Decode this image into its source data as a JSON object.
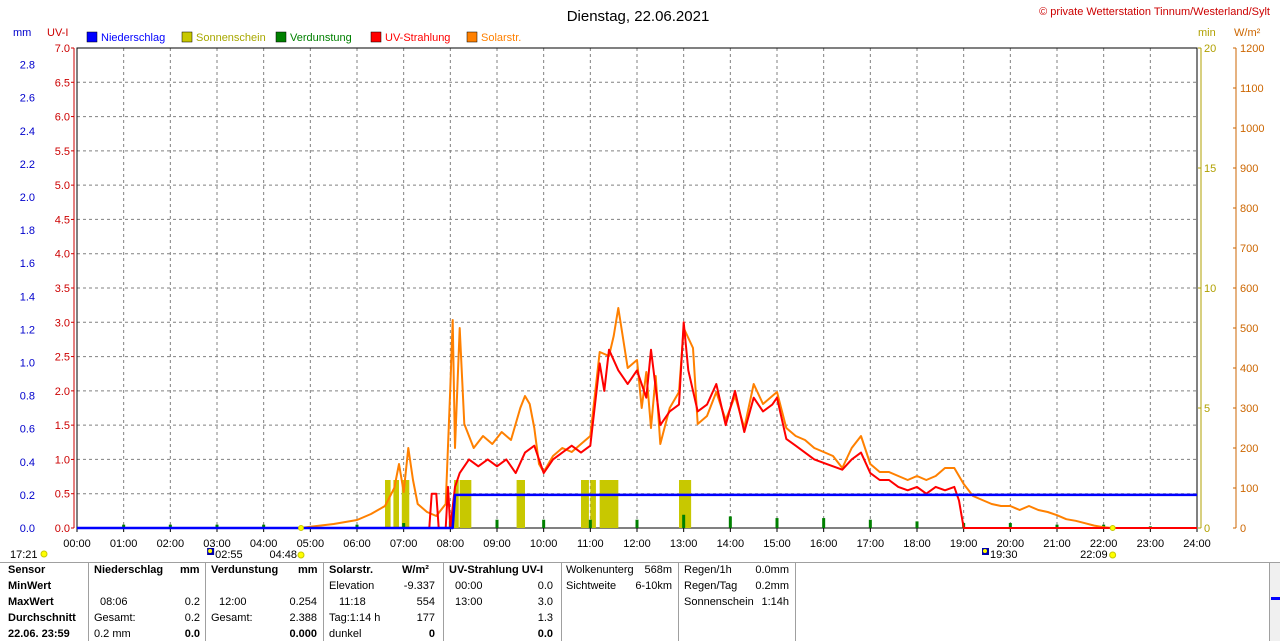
{
  "header": {
    "title": "Dienstag, 22.06.2021",
    "copyright": "© private Wetterstation Tinnum/Westerland/Sylt"
  },
  "axes": {
    "left_unit_mm": "mm",
    "left_unit_uv": "UV-I",
    "right_unit_min": "min",
    "right_unit_wm2": "W/m²",
    "mm_ticks": [
      "0.0",
      "0.2",
      "0.4",
      "0.6",
      "0.8",
      "1.0",
      "1.2",
      "1.4",
      "1.6",
      "1.8",
      "2.0",
      "2.2",
      "2.4",
      "2.6",
      "2.8"
    ],
    "uv_ticks": [
      "0.0",
      "0.5",
      "1.0",
      "1.5",
      "2.0",
      "2.5",
      "3.0",
      "3.5",
      "4.0",
      "4.5",
      "5.0",
      "5.5",
      "6.0",
      "6.5",
      "7.0"
    ],
    "min_ticks": [
      "0",
      "5",
      "10",
      "15",
      "20"
    ],
    "wm2_ticks": [
      "0",
      "100",
      "200",
      "300",
      "400",
      "500",
      "600",
      "700",
      "800",
      "900",
      "1000",
      "1100",
      "1200"
    ],
    "time_ticks": [
      "00:00",
      "01:00",
      "02:00",
      "03:00",
      "04:00",
      "05:00",
      "06:00",
      "07:00",
      "08:00",
      "09:00",
      "10:00",
      "11:00",
      "12:00",
      "13:00",
      "14:00",
      "15:00",
      "16:00",
      "17:00",
      "18:00",
      "19:00",
      "20:00",
      "21:00",
      "22:00",
      "23:00",
      "24:00"
    ]
  },
  "legend": [
    {
      "label": "Niederschlag",
      "color": "#0000ff"
    },
    {
      "label": "Sonnenschein",
      "color": "#c8c800"
    },
    {
      "label": "Verdunstung",
      "color": "#008000"
    },
    {
      "label": "UV-Strahlung",
      "color": "#ff0000"
    },
    {
      "label": "Solarstr.",
      "color": "#ff8000"
    }
  ],
  "markers": {
    "moonset": "17:21",
    "moonrise": "22:09",
    "sunrise": "02:55",
    "dawn": "04:48",
    "sunset": "19:30"
  },
  "chart_data": {
    "type": "line",
    "x_unit": "hours",
    "xlim": [
      0,
      24
    ],
    "ylim_mm": [
      0,
      2.9
    ],
    "ylim_uv": [
      0,
      7.0
    ],
    "ylim_min": [
      0,
      20
    ],
    "ylim_wm2": [
      0,
      1200
    ],
    "grid": true,
    "legend_position": "top-left",
    "series": [
      {
        "name": "Solarstr.",
        "axis": "W/m²",
        "color": "#ff8000",
        "points": [
          [
            0,
            0
          ],
          [
            4.8,
            0
          ],
          [
            5.0,
            3
          ],
          [
            5.5,
            10
          ],
          [
            6.0,
            20
          ],
          [
            6.3,
            35
          ],
          [
            6.6,
            55
          ],
          [
            6.8,
            100
          ],
          [
            6.9,
            160
          ],
          [
            7.0,
            90
          ],
          [
            7.1,
            200
          ],
          [
            7.2,
            120
          ],
          [
            7.3,
            60
          ],
          [
            7.5,
            40
          ],
          [
            7.7,
            30
          ],
          [
            7.9,
            60
          ],
          [
            8.0,
            350
          ],
          [
            8.05,
            520
          ],
          [
            8.1,
            200
          ],
          [
            8.2,
            500
          ],
          [
            8.3,
            260
          ],
          [
            8.5,
            200
          ],
          [
            8.7,
            230
          ],
          [
            8.9,
            210
          ],
          [
            9.1,
            240
          ],
          [
            9.3,
            220
          ],
          [
            9.5,
            300
          ],
          [
            9.6,
            330
          ],
          [
            9.7,
            310
          ],
          [
            9.8,
            250
          ],
          [
            9.9,
            160
          ],
          [
            10.0,
            140
          ],
          [
            10.2,
            180
          ],
          [
            10.4,
            200
          ],
          [
            10.6,
            190
          ],
          [
            10.8,
            210
          ],
          [
            11.0,
            230
          ],
          [
            11.2,
            440
          ],
          [
            11.4,
            430
          ],
          [
            11.5,
            480
          ],
          [
            11.6,
            550
          ],
          [
            11.8,
            400
          ],
          [
            12.0,
            420
          ],
          [
            12.1,
            300
          ],
          [
            12.2,
            390
          ],
          [
            12.3,
            250
          ],
          [
            12.4,
            380
          ],
          [
            12.5,
            210
          ],
          [
            12.7,
            300
          ],
          [
            12.9,
            340
          ],
          [
            13.0,
            500
          ],
          [
            13.2,
            450
          ],
          [
            13.3,
            260
          ],
          [
            13.5,
            280
          ],
          [
            13.7,
            340
          ],
          [
            13.9,
            270
          ],
          [
            14.1,
            330
          ],
          [
            14.3,
            250
          ],
          [
            14.5,
            360
          ],
          [
            14.7,
            310
          ],
          [
            14.9,
            330
          ],
          [
            15.0,
            340
          ],
          [
            15.2,
            250
          ],
          [
            15.4,
            230
          ],
          [
            15.6,
            220
          ],
          [
            15.8,
            200
          ],
          [
            16.0,
            190
          ],
          [
            16.2,
            180
          ],
          [
            16.4,
            150
          ],
          [
            16.6,
            200
          ],
          [
            16.8,
            230
          ],
          [
            17.0,
            160
          ],
          [
            17.2,
            140
          ],
          [
            17.4,
            140
          ],
          [
            17.6,
            130
          ],
          [
            17.8,
            120
          ],
          [
            18.0,
            130
          ],
          [
            18.2,
            120
          ],
          [
            18.4,
            130
          ],
          [
            18.6,
            150
          ],
          [
            18.8,
            150
          ],
          [
            19.0,
            110
          ],
          [
            19.2,
            80
          ],
          [
            19.4,
            70
          ],
          [
            19.6,
            60
          ],
          [
            19.8,
            55
          ],
          [
            20.0,
            55
          ],
          [
            20.2,
            45
          ],
          [
            20.4,
            55
          ],
          [
            20.6,
            45
          ],
          [
            20.8,
            40
          ],
          [
            21.0,
            32
          ],
          [
            21.2,
            22
          ],
          [
            21.4,
            18
          ],
          [
            21.6,
            12
          ],
          [
            21.8,
            6
          ],
          [
            22.0,
            2
          ],
          [
            22.2,
            0
          ],
          [
            24,
            0
          ]
        ]
      },
      {
        "name": "UV-Strahlung",
        "axis": "UV-I",
        "color": "#ff0000",
        "points": [
          [
            0,
            0
          ],
          [
            7.55,
            0
          ],
          [
            7.6,
            0.5
          ],
          [
            7.7,
            0.5
          ],
          [
            7.75,
            0
          ],
          [
            7.9,
            0
          ],
          [
            7.95,
            0.6
          ],
          [
            8.0,
            0
          ],
          [
            8.1,
            0.6
          ],
          [
            8.2,
            0.8
          ],
          [
            8.4,
            1.0
          ],
          [
            8.6,
            0.9
          ],
          [
            8.8,
            1.0
          ],
          [
            9.0,
            0.9
          ],
          [
            9.2,
            1.0
          ],
          [
            9.4,
            0.8
          ],
          [
            9.6,
            1.1
          ],
          [
            9.8,
            1.2
          ],
          [
            10.0,
            0.8
          ],
          [
            10.2,
            1.0
          ],
          [
            10.4,
            1.1
          ],
          [
            10.6,
            1.2
          ],
          [
            10.8,
            1.1
          ],
          [
            11.0,
            1.2
          ],
          [
            11.2,
            2.4
          ],
          [
            11.3,
            2.0
          ],
          [
            11.4,
            2.6
          ],
          [
            11.6,
            2.3
          ],
          [
            11.8,
            2.1
          ],
          [
            12.0,
            2.3
          ],
          [
            12.2,
            1.9
          ],
          [
            12.3,
            2.6
          ],
          [
            12.5,
            1.5
          ],
          [
            12.7,
            1.7
          ],
          [
            12.9,
            1.8
          ],
          [
            13.0,
            3.0
          ],
          [
            13.1,
            2.3
          ],
          [
            13.3,
            1.7
          ],
          [
            13.5,
            1.8
          ],
          [
            13.7,
            2.1
          ],
          [
            13.9,
            1.5
          ],
          [
            14.1,
            2.0
          ],
          [
            14.3,
            1.4
          ],
          [
            14.5,
            1.9
          ],
          [
            14.7,
            1.7
          ],
          [
            14.9,
            1.8
          ],
          [
            15.0,
            1.9
          ],
          [
            15.2,
            1.3
          ],
          [
            15.4,
            1.2
          ],
          [
            15.6,
            1.1
          ],
          [
            15.8,
            1.0
          ],
          [
            16.0,
            0.95
          ],
          [
            16.2,
            0.9
          ],
          [
            16.4,
            0.85
          ],
          [
            16.6,
            1.0
          ],
          [
            16.8,
            1.1
          ],
          [
            17.0,
            0.8
          ],
          [
            17.2,
            0.7
          ],
          [
            17.4,
            0.7
          ],
          [
            17.6,
            0.6
          ],
          [
            17.8,
            0.55
          ],
          [
            18.0,
            0.6
          ],
          [
            18.2,
            0.5
          ],
          [
            18.4,
            0.6
          ],
          [
            18.6,
            0.55
          ],
          [
            18.8,
            0.6
          ],
          [
            18.9,
            0.4
          ],
          [
            19.0,
            0
          ],
          [
            24,
            0
          ]
        ]
      },
      {
        "name": "Niederschlag",
        "axis": "mm",
        "color": "#0000ff",
        "points": [
          [
            0,
            0
          ],
          [
            8.05,
            0
          ],
          [
            8.1,
            0.2
          ],
          [
            24,
            0.2
          ]
        ]
      }
    ],
    "sunshine_bars": [
      {
        "start": 6.6,
        "end": 6.72,
        "minutes": 2
      },
      {
        "start": 6.78,
        "end": 6.9,
        "minutes": 2
      },
      {
        "start": 6.96,
        "end": 7.12,
        "minutes": 2
      },
      {
        "start": 8.08,
        "end": 8.18,
        "minutes": 2
      },
      {
        "start": 8.2,
        "end": 8.45,
        "minutes": 2
      },
      {
        "start": 9.42,
        "end": 9.6,
        "minutes": 2
      },
      {
        "start": 10.8,
        "end": 10.97,
        "minutes": 2
      },
      {
        "start": 11.0,
        "end": 11.12,
        "minutes": 2
      },
      {
        "start": 11.2,
        "end": 11.6,
        "minutes": 2
      },
      {
        "start": 12.9,
        "end": 13.05,
        "minutes": 2
      },
      {
        "start": 13.05,
        "end": 13.16,
        "minutes": 2
      }
    ],
    "evaporation_spikes": [
      1,
      2,
      3,
      4,
      5,
      6,
      7,
      8,
      9,
      10,
      11,
      12,
      13,
      14,
      15,
      16,
      17,
      18,
      19,
      20,
      21,
      22,
      23
    ],
    "evaporation_heights_mm": [
      0.02,
      0.02,
      0.02,
      0.02,
      0.01,
      0.02,
      0.03,
      0.04,
      0.05,
      0.05,
      0.05,
      0.05,
      0.08,
      0.07,
      0.06,
      0.06,
      0.05,
      0.04,
      0.03,
      0.03,
      0.02,
      0.02,
      0.01
    ]
  },
  "stats": {
    "labels": {
      "sensor": "Sensor",
      "min": "MinWert",
      "max": "MaxWert",
      "avg": "Durchschnitt",
      "date": "22.06. 23:59"
    },
    "rain": {
      "header": "Niederschlag",
      "unit": "mm",
      "max_time": "08:06",
      "max_value": "0.2",
      "total_label": "Gesamt:",
      "total_value": "0.2",
      "avg_value": "0.2 mm",
      "avg_extra": "0.0"
    },
    "evap": {
      "header": "Verdunstung",
      "unit": "mm",
      "max_time": "12:00",
      "max_value": "0.254",
      "total_label": "Gesamt:",
      "total_value": "2.388",
      "avg_extra": "0.000"
    },
    "solar": {
      "header": "Solarstr.",
      "unit": "W/m²",
      "elev_label": "Elevation",
      "elev_value": "-9.337",
      "max_time": "11:18",
      "max_value": "554",
      "day_label": "Tag:1:14 h",
      "day_value": "177",
      "dark_label": "dunkel",
      "dark_value": "0"
    },
    "uv": {
      "header": "UV-Strahlung UV-I",
      "min_time": "00:00",
      "min_value": "0.0",
      "max_time": "13:00",
      "max_value": "3.0",
      "avg_value": "1.3",
      "avg_extra": "0.0"
    },
    "cloud": {
      "base_label": "Wolkenunterg",
      "base_value": "568m",
      "vis_label": "Sichtweite",
      "vis_value": "6-10km"
    },
    "rainrate": {
      "r1_label": "Regen/1h",
      "r1_value": "0.0mm",
      "rd_label": "Regen/Tag",
      "rd_value": "0.2mm",
      "sun_label": "Sonnenschein",
      "sun_value": "1:14h"
    }
  }
}
